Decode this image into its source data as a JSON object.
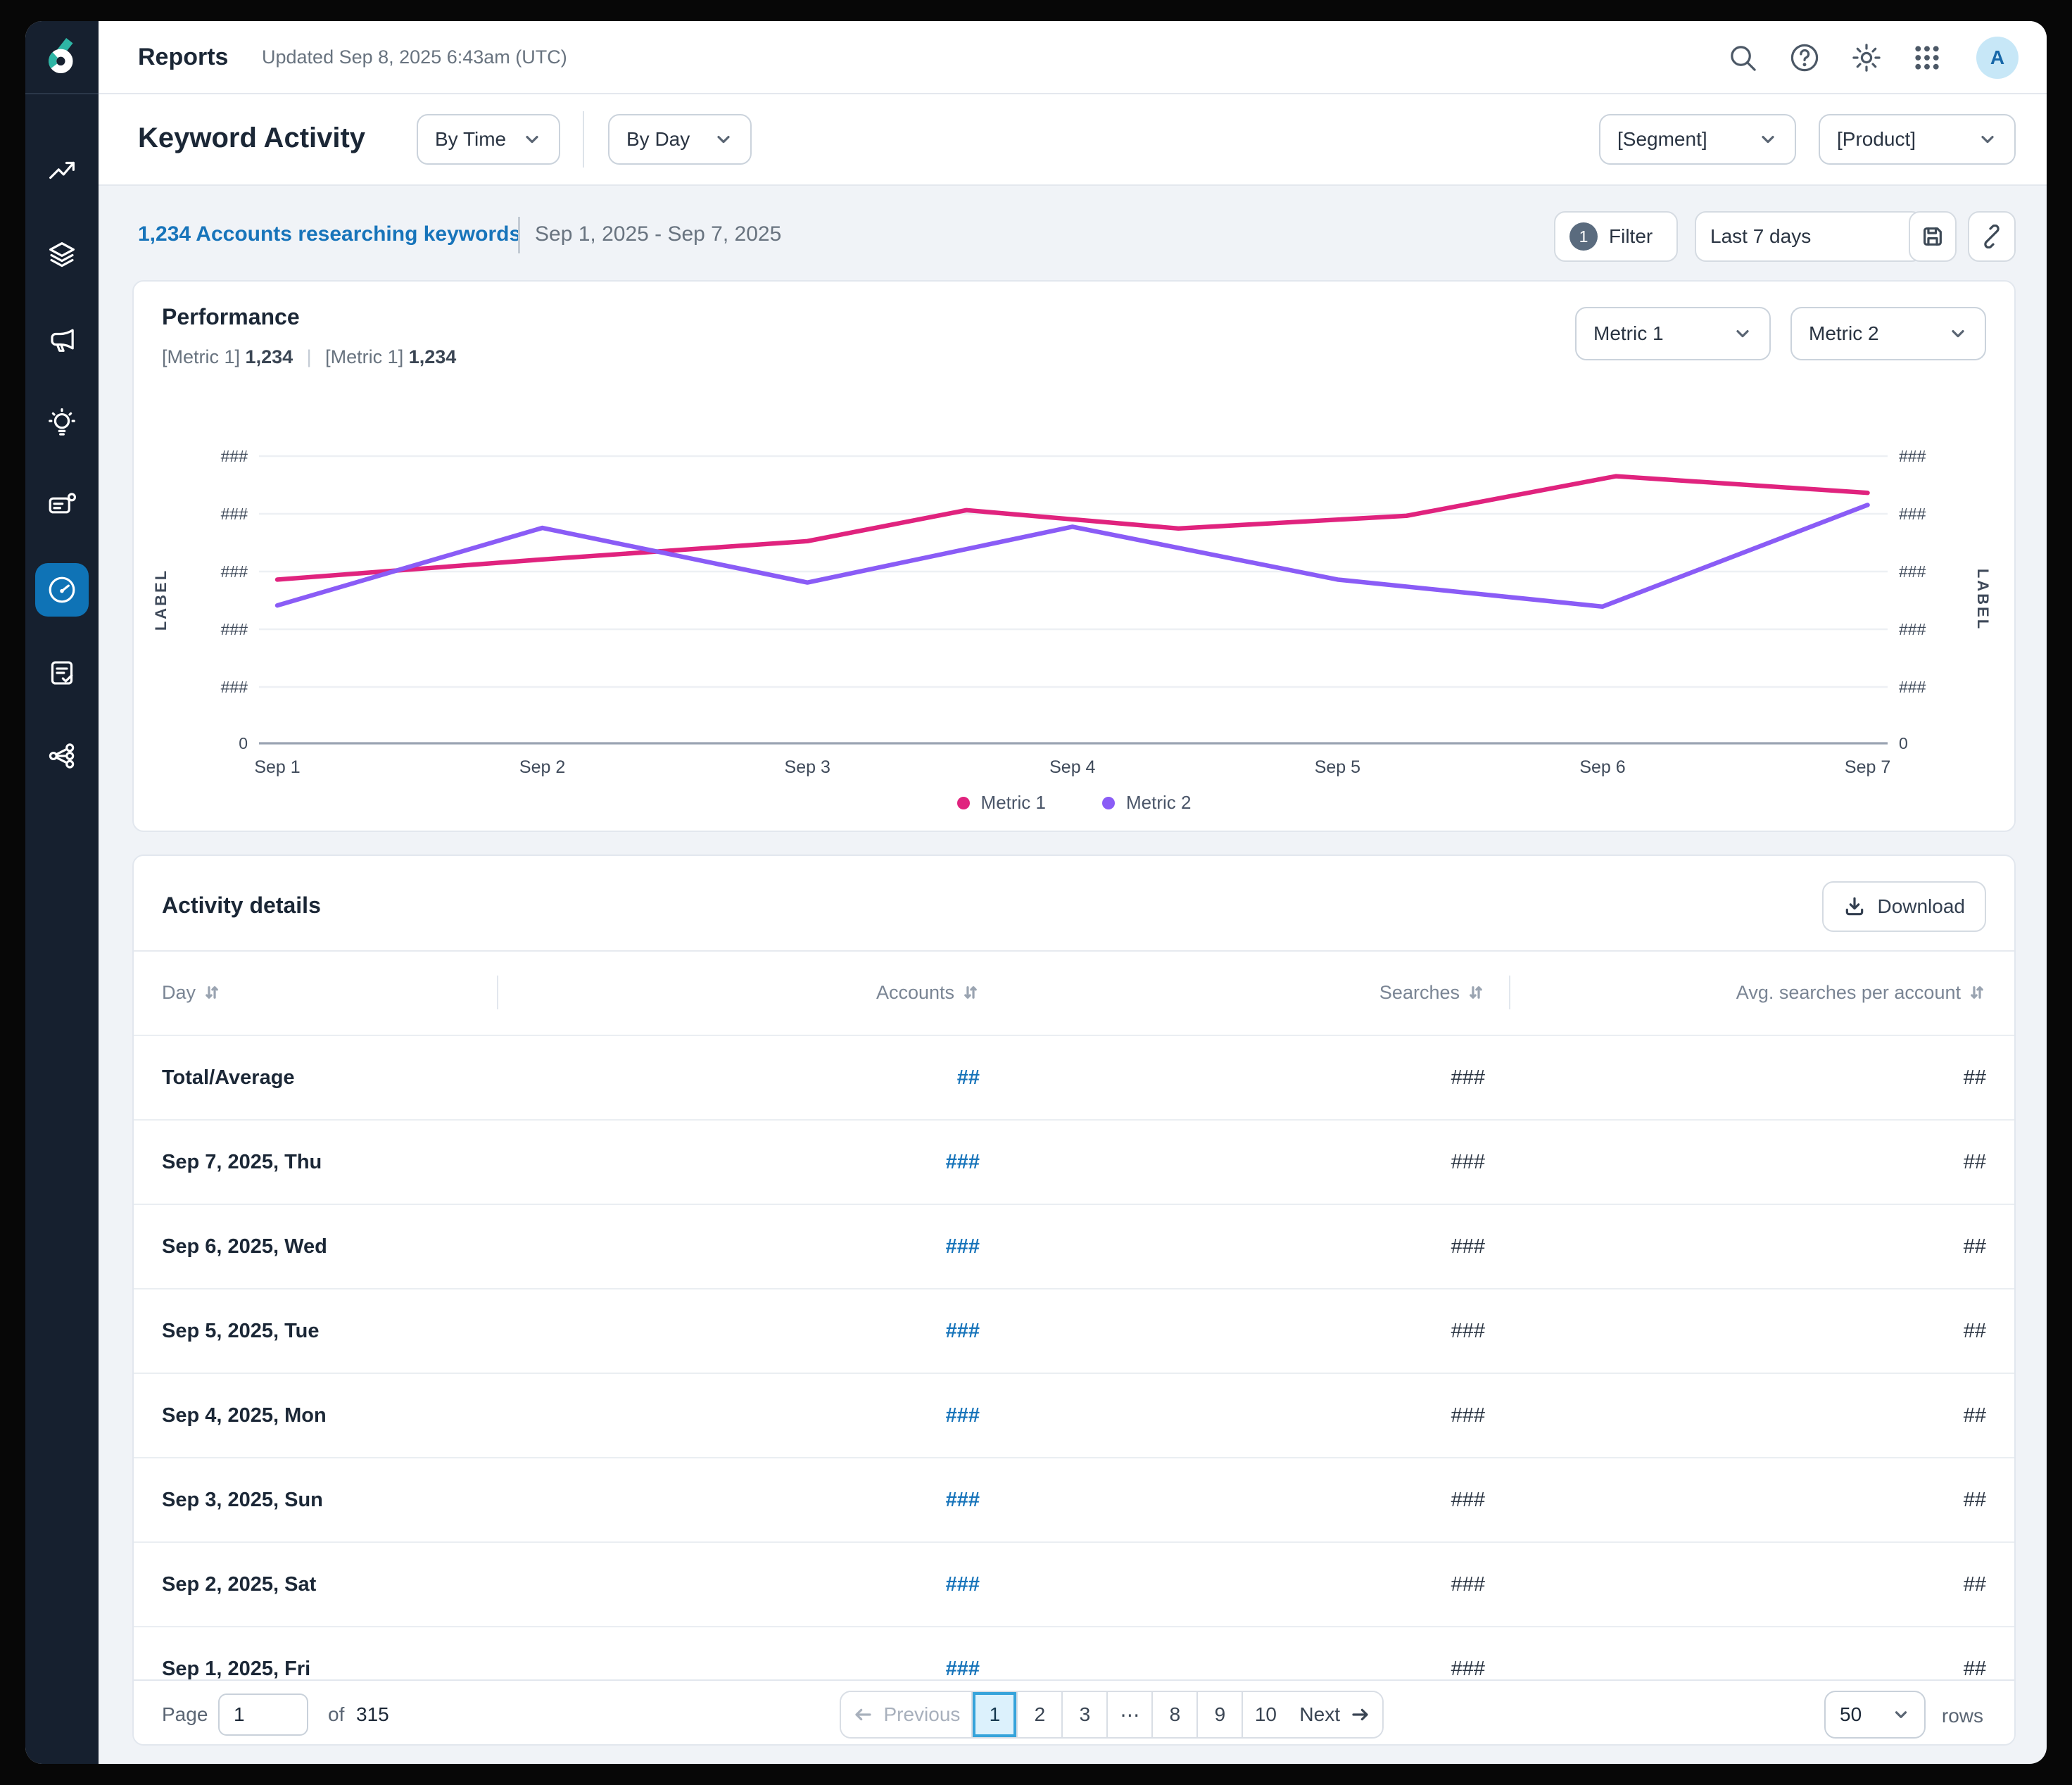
{
  "header": {
    "title": "Reports",
    "updated": "Updated Sep 8, 2025 6:43am (UTC)",
    "icons": [
      "search",
      "help",
      "settings",
      "apps-grid"
    ],
    "avatar_initial": "A"
  },
  "sidebar": {
    "items": [
      {
        "icon": "trend-up-icon",
        "active": false
      },
      {
        "icon": "layers-icon",
        "active": false
      },
      {
        "icon": "megaphone-icon",
        "active": false
      },
      {
        "icon": "lightbulb-icon",
        "active": false
      },
      {
        "icon": "contact-card-icon",
        "active": false
      },
      {
        "icon": "gauge-icon",
        "active": true
      },
      {
        "icon": "doc-check-icon",
        "active": false
      },
      {
        "icon": "share-network-icon",
        "active": false
      }
    ]
  },
  "toolbar": {
    "page_title": "Keyword Activity",
    "time_dropdown": "By Time",
    "day_dropdown": "By Day",
    "segment_dropdown": "[Segment]",
    "product_dropdown": "[Product]"
  },
  "filter_bar": {
    "accounts_link": "1,234 Accounts researching keywords",
    "date_range": "Sep 1, 2025 - Sep 7, 2025",
    "filter_count": "1",
    "filter_label": "Filter",
    "date_preset": "Last 7 days"
  },
  "performance": {
    "title": "Performance",
    "metric1_label": "[Metric 1]",
    "metric1_value": "1,234",
    "metric2_label": "[Metric 1]",
    "metric2_value": "1,234",
    "dropdown1": "Metric 1",
    "dropdown2": "Metric 2"
  },
  "chart_data": {
    "type": "line",
    "title": "Performance",
    "x_categories": [
      "Sep 1",
      "Sep 2",
      "Sep 3",
      "Sep 4",
      "Sep 5",
      "Sep 6",
      "Sep 7"
    ],
    "ylabel_left": "LABEL",
    "ylabel_right": "LABEL",
    "y_tick_labels": [
      "###",
      "###",
      "###",
      "###",
      "###"
    ],
    "y_zero_label": "0",
    "y_range": [
      0,
      500
    ],
    "grid": true,
    "legend_position": "bottom",
    "series": [
      {
        "name": "Metric 1",
        "color": "#E0237E",
        "points": [
          [
            0,
            285
          ],
          [
            1,
            320
          ],
          [
            2,
            352
          ],
          [
            2.6,
            406
          ],
          [
            3.4,
            374
          ],
          [
            4.26,
            396
          ],
          [
            5.05,
            465
          ],
          [
            6,
            436
          ]
        ]
      },
      {
        "name": "Metric 2",
        "color": "#8A5CF6",
        "points": [
          [
            0,
            240
          ],
          [
            1,
            375
          ],
          [
            2,
            280
          ],
          [
            3,
            377
          ],
          [
            4,
            285
          ],
          [
            5,
            238
          ],
          [
            6,
            415
          ]
        ]
      }
    ]
  },
  "activity": {
    "title": "Activity details",
    "download_label": "Download",
    "columns": [
      {
        "label": "Day"
      },
      {
        "label": "Accounts"
      },
      {
        "label": "Searches"
      },
      {
        "label": "Avg. searches per account"
      }
    ],
    "rows": [
      {
        "day": "Total/Average",
        "accounts": "##",
        "searches": "###",
        "avg": "##"
      },
      {
        "day": "Sep 7, 2025, Thu",
        "accounts": "###",
        "searches": "###",
        "avg": "##"
      },
      {
        "day": "Sep 6, 2025, Wed",
        "accounts": "###",
        "searches": "###",
        "avg": "##"
      },
      {
        "day": "Sep 5, 2025, Tue",
        "accounts": "###",
        "searches": "###",
        "avg": "##"
      },
      {
        "day": "Sep 4, 2025, Mon",
        "accounts": "###",
        "searches": "###",
        "avg": "##"
      },
      {
        "day": "Sep 3, 2025, Sun",
        "accounts": "###",
        "searches": "###",
        "avg": "##"
      },
      {
        "day": "Sep 2, 2025, Sat",
        "accounts": "###",
        "searches": "###",
        "avg": "##"
      },
      {
        "day": "Sep 1, 2025, Fri",
        "accounts": "###",
        "searches": "###",
        "avg": "##"
      }
    ]
  },
  "pagination": {
    "page_label": "Page",
    "page_value": "1",
    "of_label": "of",
    "total_pages": "315",
    "previous_label": "Previous",
    "pages": [
      "1",
      "2",
      "3",
      "⋯",
      "8",
      "9",
      "10"
    ],
    "active_page": "1",
    "next_label": "Next",
    "rows_per_page": "50",
    "rows_label": "rows"
  },
  "colors": {
    "accent_blue": "#1774BA",
    "metric1_pink": "#E0237E",
    "metric2_purple": "#8A5CF6",
    "sidebar_active": "#0F73B6",
    "logo_teal": "#2EB5A5"
  }
}
